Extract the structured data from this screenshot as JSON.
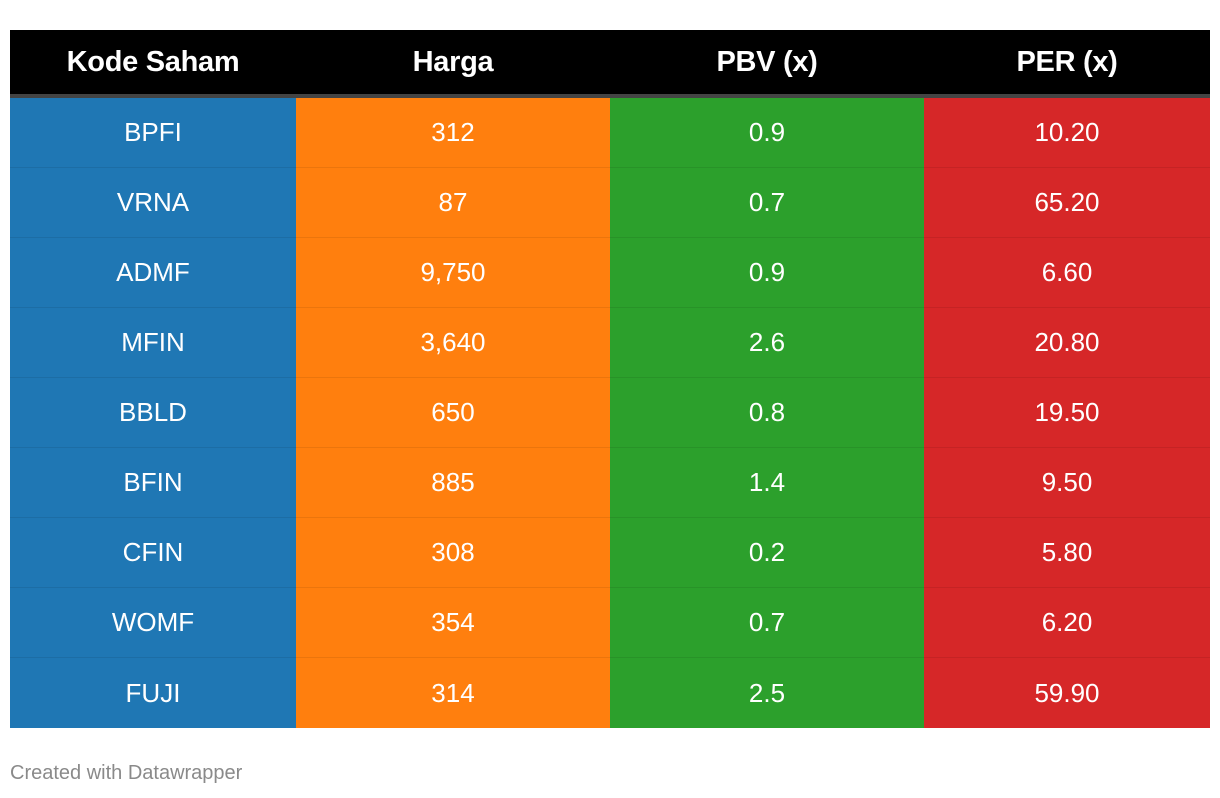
{
  "chart_data": {
    "type": "table",
    "columns": [
      "Kode Saham",
      "Harga",
      "PBV (x)",
      "PER (x)"
    ],
    "column_colors": [
      "#1f77b4",
      "#ff7f0e",
      "#2ca02c",
      "#d62728"
    ],
    "header_color": "#000000",
    "rows": [
      [
        "BPFI",
        "312",
        "0.9",
        "10.20"
      ],
      [
        "VRNA",
        "87",
        "0.7",
        "65.20"
      ],
      [
        "ADMF",
        "9,750",
        "0.9",
        "6.60"
      ],
      [
        "MFIN",
        "3,640",
        "2.6",
        "20.80"
      ],
      [
        "BBLD",
        "650",
        "0.8",
        "19.50"
      ],
      [
        "BFIN",
        "885",
        "1.4",
        "9.50"
      ],
      [
        "CFIN",
        "308",
        "0.2",
        "5.80"
      ],
      [
        "WOMF",
        "354",
        "0.7",
        "6.20"
      ],
      [
        "FUJI",
        "314",
        "2.5",
        "59.90"
      ]
    ]
  },
  "footer": {
    "credit": "Created with Datawrapper"
  }
}
